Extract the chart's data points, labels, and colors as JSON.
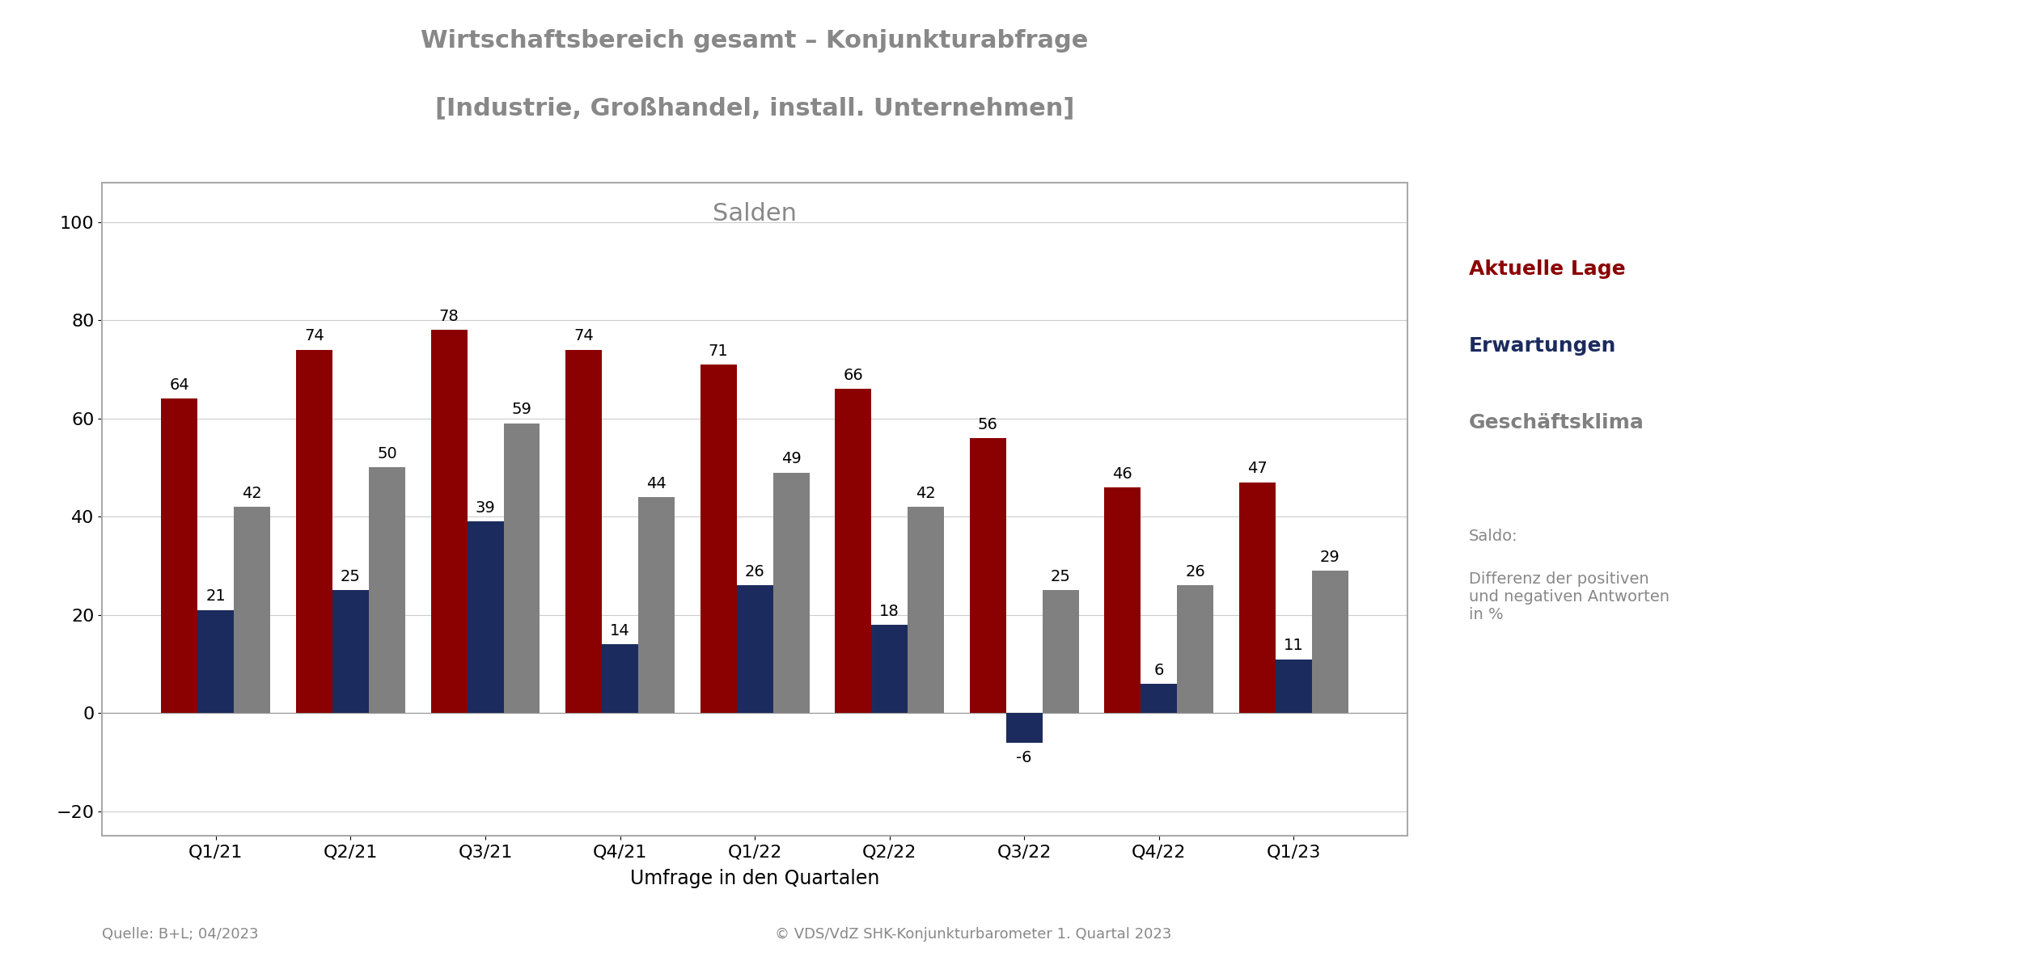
{
  "title_line1": "Wirtschaftsbereich gesamt – Konjunkturabfrage",
  "title_line2": "[Industrie, Großhandel, install. Unternehmen]",
  "chart_label": "Salden",
  "xlabel": "Umfrage in den Quartalen",
  "categories": [
    "Q1/21",
    "Q2/21",
    "Q3/21",
    "Q4/21",
    "Q1/22",
    "Q2/22",
    "Q3/22",
    "Q4/22",
    "Q1/23"
  ],
  "aktuelle_lage": [
    64,
    74,
    78,
    74,
    71,
    66,
    56,
    46,
    47
  ],
  "erwartungen": [
    21,
    25,
    39,
    14,
    26,
    18,
    -6,
    6,
    11
  ],
  "geschaeftsklima": [
    42,
    50,
    59,
    44,
    49,
    42,
    25,
    26,
    29
  ],
  "color_aktuelle": "#8B0000",
  "color_erwartungen": "#1C2B5E",
  "color_geschaeft": "#808080",
  "ylim_min": -25,
  "ylim_max": 108,
  "yticks": [
    -20,
    0,
    20,
    40,
    60,
    80,
    100
  ],
  "legend_aktuelle": "Aktuelle Lage",
  "legend_erwartungen": "Erwartungen",
  "legend_geschaeft": "Geschäftsklima",
  "note_title": "Saldo:",
  "note_body": "Differenz der positiven\nund negativen Antworten\nin %",
  "source_left": "Quelle: B+L; 04/2023",
  "source_right": "© VDS/VdZ SHK-Konjunkturbarometer 1. Quartal 2023",
  "bar_width": 0.27,
  "title_fontsize": 22,
  "axis_label_fontsize": 17,
  "tick_fontsize": 16,
  "bar_label_fontsize": 14,
  "legend_fontsize": 18,
  "note_fontsize": 14,
  "source_fontsize": 13,
  "chart_label_fontsize": 22,
  "background_color": "#FFFFFF"
}
